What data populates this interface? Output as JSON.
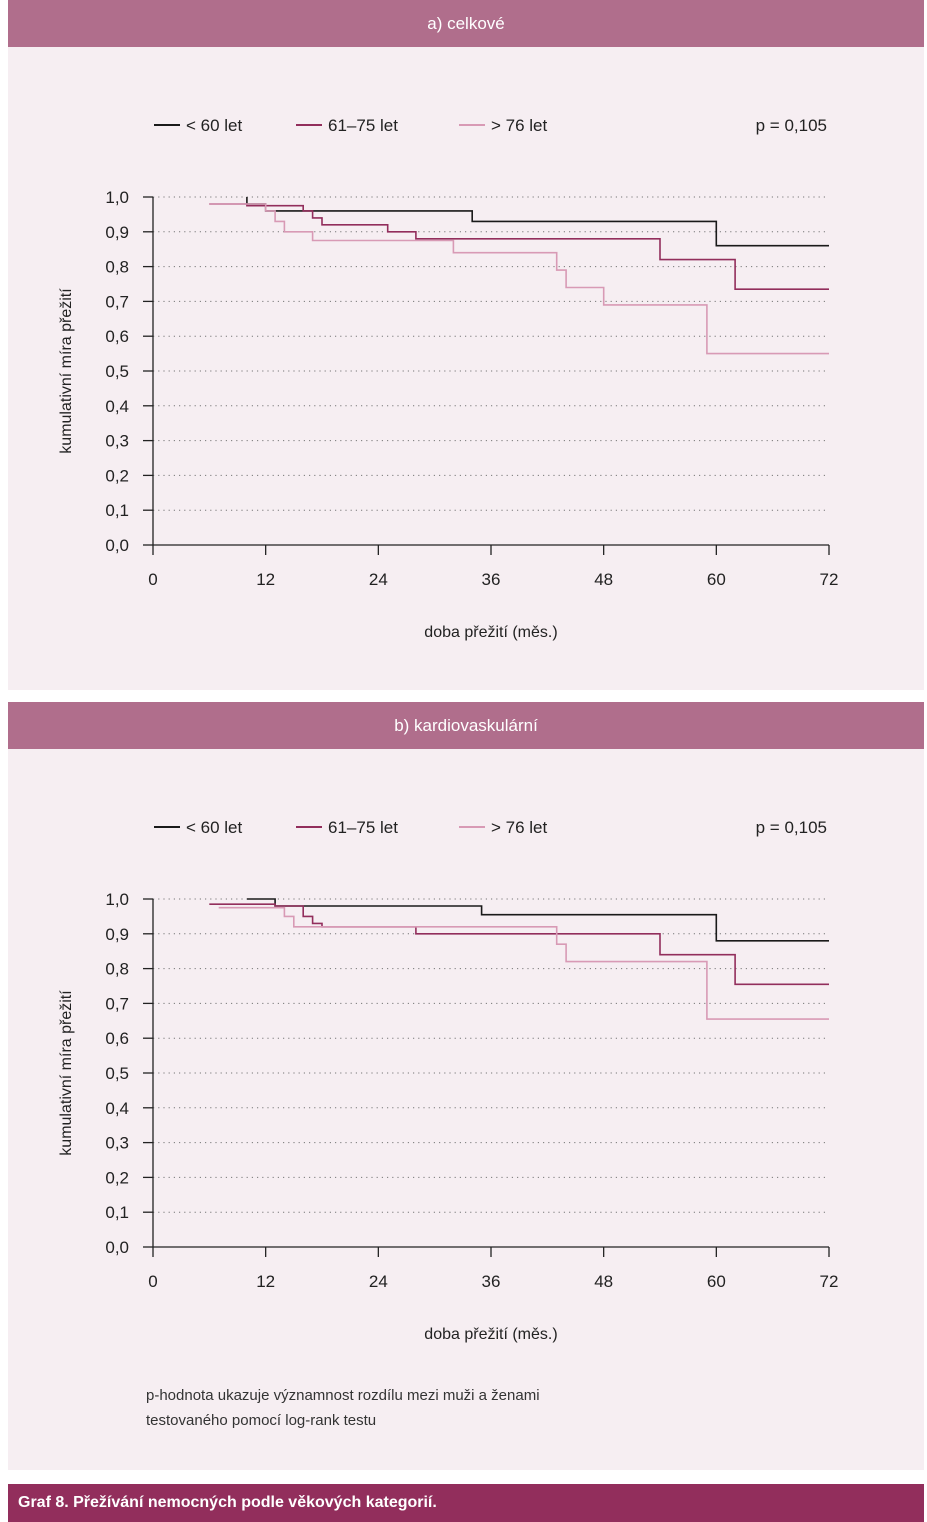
{
  "panels": [
    {
      "title": "a) celkové"
    },
    {
      "title": "b) kardiovaskulární"
    }
  ],
  "note": {
    "line1": "p-hodnota ukazuje významnost rozdílu mezi muži a ženami",
    "line2": "testovaného pomocí log-rank testu"
  },
  "caption": "Graf 8. Přežívání nemocných podle věkových kategorií.",
  "chart_data": [
    {
      "type": "line",
      "step": true,
      "title": "a) celkové",
      "xlabel": "doba přežití (měs.)",
      "ylabel": "kumulativní míra přežití",
      "xlim": [
        0,
        72
      ],
      "ylim": [
        0,
        1
      ],
      "xticks": [
        0,
        12,
        24,
        36,
        48,
        60,
        72
      ],
      "xtick_labels": [
        "0",
        "12",
        "24",
        "36",
        "48",
        "60",
        "72"
      ],
      "yticks": [
        0,
        0.1,
        0.2,
        0.3,
        0.4,
        0.5,
        0.6,
        0.7,
        0.8,
        0.9,
        1.0
      ],
      "ytick_labels": [
        "0,0",
        "0,1",
        "0,2",
        "0,3",
        "0,4",
        "0,5",
        "0,6",
        "0,7",
        "0,8",
        "0,9",
        "1,0"
      ],
      "grid": "horizontal dotted",
      "legend_position": "top",
      "annotation": "p = 0,105",
      "series": [
        {
          "name": "< 60 let",
          "color": "#1a1a1a",
          "x": [
            10,
            10,
            12,
            12,
            17,
            17,
            34,
            34,
            60,
            60,
            72
          ],
          "y": [
            1.0,
            0.98,
            0.98,
            0.96,
            0.96,
            0.96,
            0.96,
            0.93,
            0.93,
            0.86,
            0.86
          ]
        },
        {
          "name": "61–75 let",
          "color": "#922e5c",
          "x": [
            6,
            10,
            10,
            16,
            16,
            17,
            17,
            18,
            18,
            25,
            25,
            28,
            28,
            54,
            54,
            62,
            62,
            72
          ],
          "y": [
            0.98,
            0.98,
            0.975,
            0.975,
            0.96,
            0.96,
            0.94,
            0.94,
            0.92,
            0.92,
            0.9,
            0.9,
            0.88,
            0.88,
            0.82,
            0.82,
            0.735,
            0.735
          ]
        },
        {
          "name": "> 76 let",
          "color": "#d89ab5",
          "x": [
            6,
            12,
            12,
            13,
            13,
            14,
            14,
            17,
            17,
            32,
            32,
            43,
            43,
            44,
            44,
            48,
            48,
            59,
            59,
            72
          ],
          "y": [
            0.98,
            0.98,
            0.96,
            0.96,
            0.93,
            0.93,
            0.9,
            0.9,
            0.875,
            0.875,
            0.84,
            0.84,
            0.79,
            0.79,
            0.74,
            0.74,
            0.69,
            0.69,
            0.55,
            0.55
          ]
        }
      ]
    },
    {
      "type": "line",
      "step": true,
      "title": "b) kardiovaskulární",
      "xlabel": "doba přežití (měs.)",
      "ylabel": "kumulativní míra přežití",
      "xlim": [
        0,
        72
      ],
      "ylim": [
        0,
        1
      ],
      "xticks": [
        0,
        12,
        24,
        36,
        48,
        60,
        72
      ],
      "xtick_labels": [
        "0",
        "12",
        "24",
        "36",
        "48",
        "60",
        "72"
      ],
      "yticks": [
        0,
        0.1,
        0.2,
        0.3,
        0.4,
        0.5,
        0.6,
        0.7,
        0.8,
        0.9,
        1.0
      ],
      "ytick_labels": [
        "0,0",
        "0,1",
        "0,2",
        "0,3",
        "0,4",
        "0,5",
        "0,6",
        "0,7",
        "0,8",
        "0,9",
        "1,0"
      ],
      "grid": "horizontal dotted",
      "legend_position": "top",
      "annotation": "p = 0,105",
      "series": [
        {
          "name": "< 60 let",
          "color": "#1a1a1a",
          "x": [
            10,
            13,
            13,
            35,
            35,
            60,
            60,
            72
          ],
          "y": [
            1.0,
            1.0,
            0.98,
            0.98,
            0.955,
            0.955,
            0.88,
            0.88
          ]
        },
        {
          "name": "61–75 let",
          "color": "#922e5c",
          "x": [
            6,
            13,
            13,
            16,
            16,
            17,
            17,
            18,
            18,
            28,
            28,
            54,
            54,
            62,
            62,
            72
          ],
          "y": [
            0.985,
            0.985,
            0.98,
            0.98,
            0.95,
            0.95,
            0.93,
            0.93,
            0.92,
            0.92,
            0.9,
            0.9,
            0.84,
            0.84,
            0.755,
            0.755
          ]
        },
        {
          "name": "> 76 let",
          "color": "#d89ab5",
          "x": [
            7,
            14,
            14,
            15,
            15,
            17,
            17,
            43,
            43,
            44,
            44,
            59,
            59,
            72
          ],
          "y": [
            0.975,
            0.975,
            0.95,
            0.95,
            0.92,
            0.92,
            0.92,
            0.92,
            0.87,
            0.87,
            0.82,
            0.82,
            0.655,
            0.655
          ]
        }
      ]
    }
  ]
}
